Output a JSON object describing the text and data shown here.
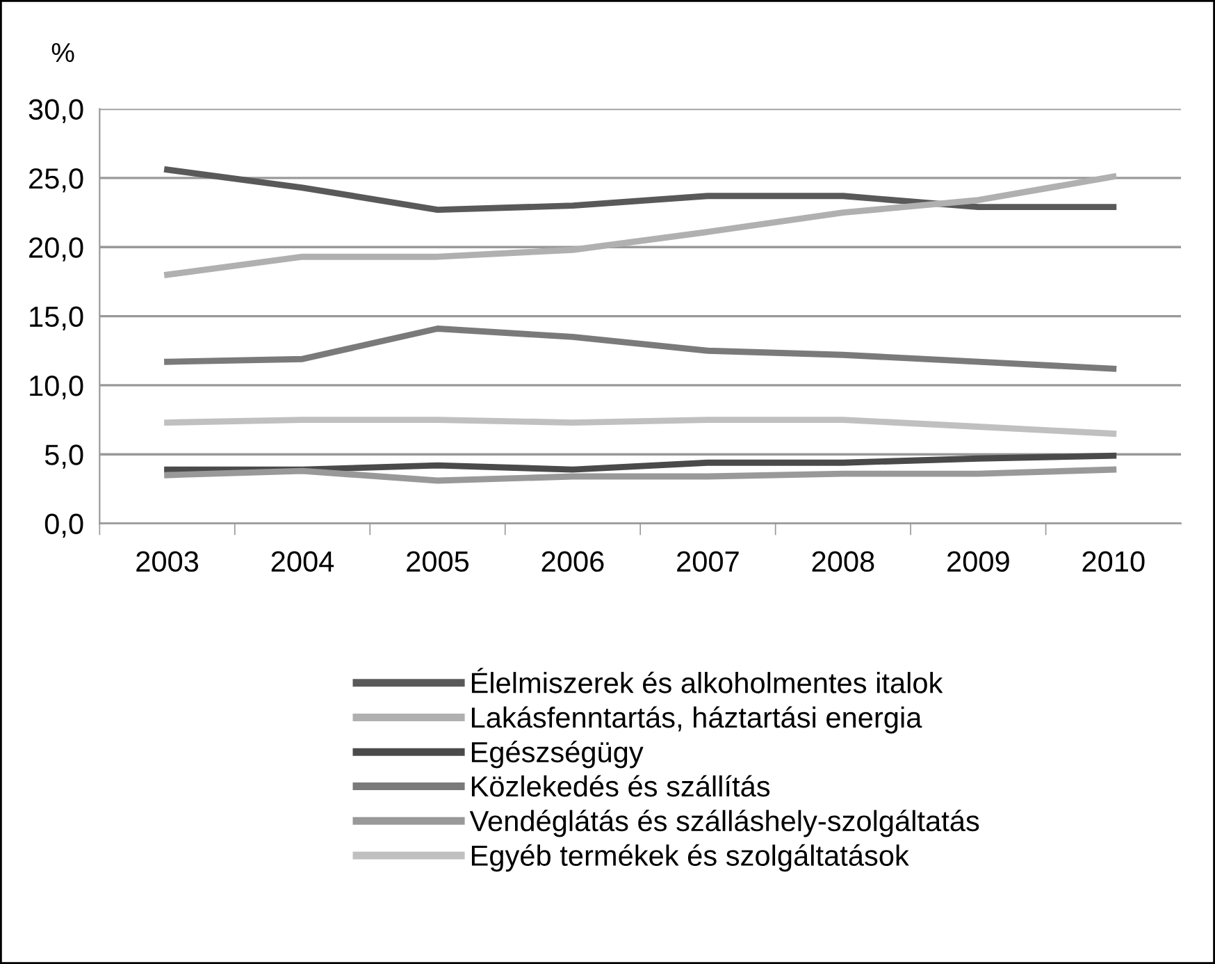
{
  "chart_data": {
    "type": "line",
    "ylabel": "%",
    "categories": [
      "2003",
      "2004",
      "2005",
      "2006",
      "2007",
      "2008",
      "2009",
      "2010"
    ],
    "series": [
      {
        "name": "Élelmiszerek és alkoholmentes italok",
        "color": "#595959",
        "values": [
          25.6,
          24.3,
          22.7,
          23.0,
          23.7,
          23.7,
          22.9,
          22.9
        ]
      },
      {
        "name": "Lakásfenntartás, háztartási energia",
        "color": "#b0b0b0",
        "values": [
          18.0,
          19.3,
          19.3,
          19.8,
          21.1,
          22.5,
          23.4,
          25.1
        ]
      },
      {
        "name": "Egészségügy",
        "color": "#4a4a4a",
        "values": [
          3.9,
          3.9,
          4.2,
          3.9,
          4.4,
          4.4,
          4.7,
          4.9
        ]
      },
      {
        "name": "Közlekedés és szállítás",
        "color": "#7a7a7a",
        "values": [
          11.7,
          11.9,
          14.1,
          13.5,
          12.5,
          12.2,
          11.7,
          11.2
        ]
      },
      {
        "name": "Vendéglátás és szálláshely-szolgáltatás",
        "color": "#999999",
        "values": [
          3.5,
          3.8,
          3.1,
          3.4,
          3.4,
          3.6,
          3.6,
          3.9
        ]
      },
      {
        "name": "Egyéb termékek és szolgáltatások",
        "color": "#c0c0c0",
        "values": [
          7.3,
          7.5,
          7.5,
          7.3,
          7.5,
          7.5,
          7.0,
          6.5
        ]
      }
    ],
    "ylim": [
      0,
      30
    ],
    "yticks": [
      {
        "value": 0,
        "label": "0,0"
      },
      {
        "value": 5,
        "label": "5,0"
      },
      {
        "value": 10,
        "label": "10,0"
      },
      {
        "value": 15,
        "label": "15,0"
      },
      {
        "value": 20,
        "label": "20,0"
      },
      {
        "value": 25,
        "label": "25,0"
      },
      {
        "value": 30,
        "label": "30,0"
      }
    ],
    "grid": "y",
    "legend": "bottom",
    "marker": "none",
    "line_style": "solid"
  }
}
